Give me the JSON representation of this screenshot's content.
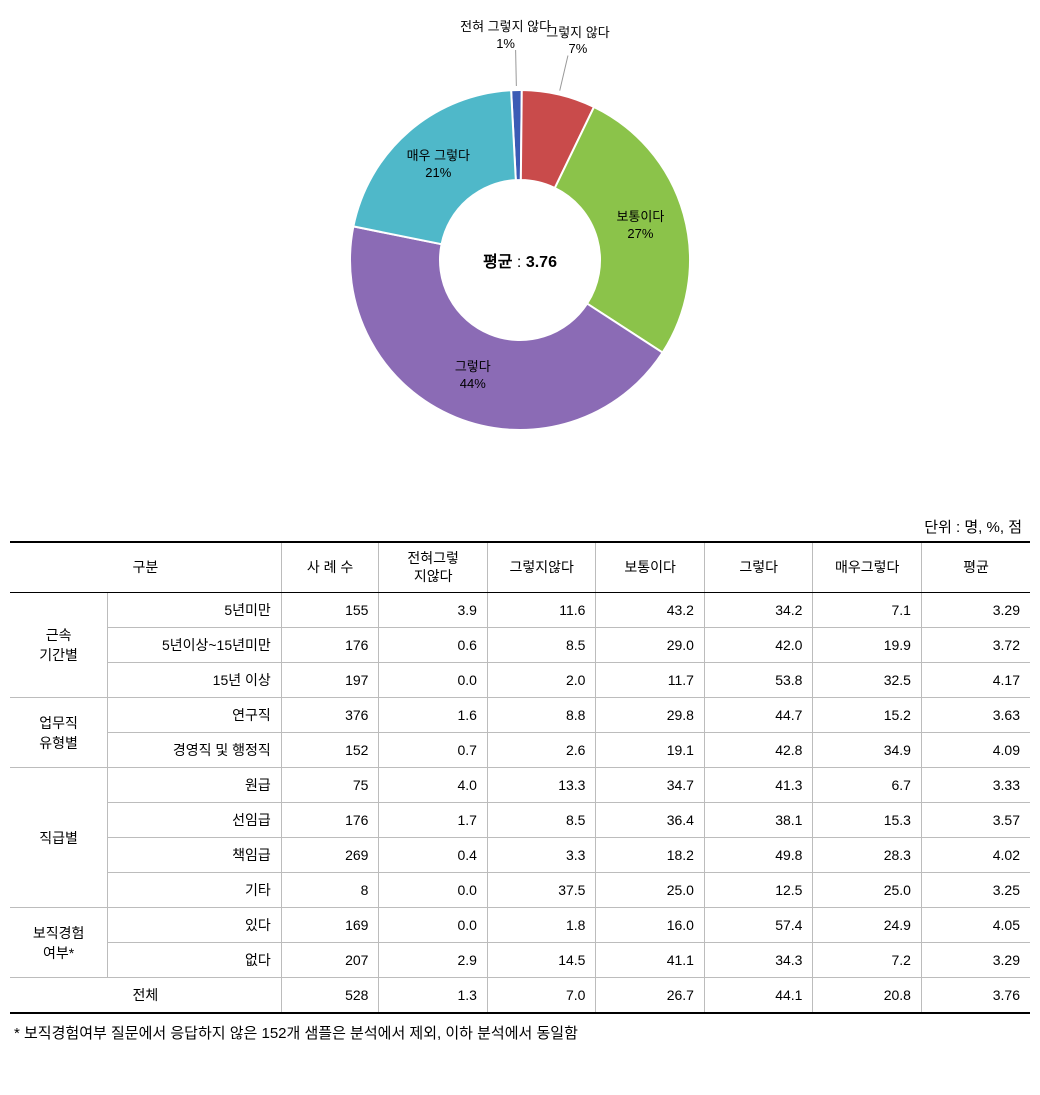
{
  "chart": {
    "type": "donut",
    "center_label_key": "평균",
    "center_label_sep": " : ",
    "average": "3.76",
    "inner_radius": 80,
    "outer_radius": 170,
    "background_color": "#ffffff",
    "slices": [
      {
        "label": "전혀 그렇지 않다",
        "pct": 1,
        "pct_text": "1%",
        "color": "#3b5bb5"
      },
      {
        "label": "그렇지 않다",
        "pct": 7,
        "pct_text": "7%",
        "color": "#c94b4b"
      },
      {
        "label": "보통이다",
        "pct": 27,
        "pct_text": "27%",
        "color": "#8bc34a"
      },
      {
        "label": "그렇다",
        "pct": 44,
        "pct_text": "44%",
        "color": "#8b6bb5"
      },
      {
        "label": "매우 그렇다",
        "pct": 21,
        "pct_text": "21%",
        "color": "#4fb8c9"
      }
    ],
    "label_fontsize": 13,
    "center_fontsize": 16
  },
  "unit_text": "단위 : 명, %, 점",
  "table": {
    "columns": [
      "구분",
      "사 례 수",
      "전혀그렇지않다",
      "그렇지않다",
      "보통이다",
      "그렇다",
      "매우그렇다",
      "평균"
    ],
    "groups": [
      {
        "name": "근속\n기간별",
        "rows": [
          {
            "label": "5년미만",
            "vals": [
              "155",
              "3.9",
              "11.6",
              "43.2",
              "34.2",
              "7.1",
              "3.29"
            ]
          },
          {
            "label": "5년이상~15년미만",
            "vals": [
              "176",
              "0.6",
              "8.5",
              "29.0",
              "42.0",
              "19.9",
              "3.72"
            ]
          },
          {
            "label": "15년 이상",
            "vals": [
              "197",
              "0.0",
              "2.0",
              "11.7",
              "53.8",
              "32.5",
              "4.17"
            ]
          }
        ]
      },
      {
        "name": "업무직\n유형별",
        "rows": [
          {
            "label": "연구직",
            "vals": [
              "376",
              "1.6",
              "8.8",
              "29.8",
              "44.7",
              "15.2",
              "3.63"
            ]
          },
          {
            "label": "경영직 및 행정직",
            "vals": [
              "152",
              "0.7",
              "2.6",
              "19.1",
              "42.8",
              "34.9",
              "4.09"
            ]
          }
        ]
      },
      {
        "name": "직급별",
        "rows": [
          {
            "label": "원급",
            "vals": [
              "75",
              "4.0",
              "13.3",
              "34.7",
              "41.3",
              "6.7",
              "3.33"
            ]
          },
          {
            "label": "선임급",
            "vals": [
              "176",
              "1.7",
              "8.5",
              "36.4",
              "38.1",
              "15.3",
              "3.57"
            ]
          },
          {
            "label": "책임급",
            "vals": [
              "269",
              "0.4",
              "3.3",
              "18.2",
              "49.8",
              "28.3",
              "4.02"
            ]
          },
          {
            "label": "기타",
            "vals": [
              "8",
              "0.0",
              "37.5",
              "25.0",
              "12.5",
              "25.0",
              "3.25"
            ]
          }
        ]
      },
      {
        "name": "보직경험\n여부*",
        "rows": [
          {
            "label": "있다",
            "vals": [
              "169",
              "0.0",
              "1.8",
              "16.0",
              "57.4",
              "24.9",
              "4.05"
            ]
          },
          {
            "label": "없다",
            "vals": [
              "207",
              "2.9",
              "14.5",
              "41.1",
              "34.3",
              "7.2",
              "3.29"
            ]
          }
        ]
      }
    ],
    "total": {
      "label": "전체",
      "vals": [
        "528",
        "1.3",
        "7.0",
        "26.7",
        "44.1",
        "20.8",
        "3.76"
      ]
    }
  },
  "footnote": "* 보직경험여부 질문에서 응답하지 않은 152개 샘플은 분석에서 제외, 이하 분석에서 동일함"
}
